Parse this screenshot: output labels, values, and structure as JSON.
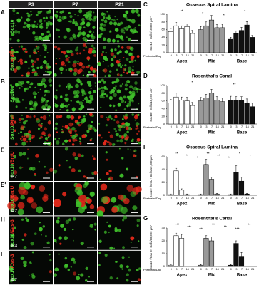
{
  "figure": {
    "columns": [
      "P3",
      "P7",
      "P21"
    ],
    "rows": [
      {
        "panel": "A",
        "stain": [
          "Sox10"
        ]
      },
      {
        "stain": [
          "Sox10",
          "/PI"
        ]
      },
      {
        "panel": "B",
        "stain": [
          "Sox10"
        ]
      },
      {
        "stain": [
          "Sox10",
          "/PI"
        ]
      },
      {
        "panel": "E",
        "stain": [
          "Sox10",
          "/BrdU"
        ],
        "age": "P7"
      },
      {
        "panel": "E'",
        "stain": [
          "Sox10",
          "/BrdU"
        ],
        "age": "P7"
      },
      {
        "panel": "H",
        "stain": [
          "Sox10",
          "/Cas-3"
        ],
        "age": "P3"
      },
      {
        "panel": "I",
        "stain": [
          "Sox10",
          "/Cas-3"
        ],
        "age": "P7"
      }
    ]
  },
  "chart_data": [
    {
      "type": "bar",
      "panel": "C",
      "title": "Osseous Spiral Lamina",
      "ylabel": "Sox10+ Cells/10,000 µm²",
      "xlabel": "Postnatal Day",
      "categories": [
        "0",
        "3",
        "7",
        "14",
        "21"
      ],
      "ylim": [
        0,
        100
      ],
      "yticks": [
        0,
        20,
        40,
        60,
        80,
        100
      ],
      "series": [
        {
          "name": "Apex",
          "color": "#ffffff",
          "values": [
            55,
            70,
            62,
            68,
            50
          ],
          "errors": [
            8,
            9,
            8,
            7,
            8
          ]
        },
        {
          "name": "Mid",
          "color": "#999999",
          "values": [
            60,
            70,
            85,
            65,
            65
          ],
          "errors": [
            8,
            10,
            12,
            8,
            9
          ]
        },
        {
          "name": "Base",
          "color": "#111111",
          "values": [
            35,
            50,
            58,
            72,
            40
          ],
          "errors": [
            5,
            7,
            8,
            9,
            5
          ]
        }
      ],
      "annotations": [
        "**",
        "*",
        "*",
        "*"
      ]
    },
    {
      "type": "bar",
      "panel": "D",
      "title": "Rosenthal's Canal",
      "ylabel": "Sox10+ Cells/10,000 µm²",
      "xlabel": "Postnatal Day",
      "categories": [
        "0",
        "3",
        "7",
        "14",
        "21"
      ],
      "ylim": [
        0,
        100
      ],
      "yticks": [
        0,
        20,
        40,
        60,
        80,
        100
      ],
      "series": [
        {
          "name": "Apex",
          "color": "#ffffff",
          "values": [
            55,
            70,
            62,
            60,
            48
          ],
          "errors": [
            9,
            10,
            8,
            9,
            8
          ]
        },
        {
          "name": "Mid",
          "color": "#999999",
          "values": [
            60,
            68,
            80,
            62,
            58
          ],
          "errors": [
            9,
            9,
            10,
            9,
            9
          ]
        },
        {
          "name": "Base",
          "color": "#111111",
          "values": [
            62,
            62,
            62,
            55,
            45
          ],
          "errors": [
            10,
            9,
            9,
            10,
            9
          ]
        }
      ],
      "annotations": [
        "*",
        "**"
      ]
    },
    {
      "type": "bar",
      "panel": "F",
      "title": "Osseous Spiral Lamina",
      "ylabel": "Sox10+/BrdU+ Cells/10,000 µm²",
      "xlabel": "Postnatal Day",
      "categories": [
        "0",
        "3",
        "7",
        "14",
        "21"
      ],
      "ylim": [
        0,
        60
      ],
      "yticks": [
        0,
        20,
        40,
        60
      ],
      "series": [
        {
          "name": "Apex",
          "color": "#ffffff",
          "values": [
            1,
            38,
            8,
            1,
            0
          ],
          "errors": [
            1,
            4,
            2,
            1,
            0
          ]
        },
        {
          "name": "Mid",
          "color": "#999999",
          "values": [
            1,
            48,
            25,
            2,
            0
          ],
          "errors": [
            1,
            8,
            3,
            1,
            0
          ]
        },
        {
          "name": "Base",
          "color": "#111111",
          "values": [
            1,
            36,
            22,
            2,
            0
          ],
          "errors": [
            1,
            10,
            6,
            1,
            0
          ]
        }
      ],
      "annotations": [
        "**",
        "**",
        "*",
        "**",
        "**",
        "**",
        "*",
        "*"
      ]
    },
    {
      "type": "bar",
      "panel": "G",
      "title": "Rosenthal's Canal",
      "ylabel": "Sox10+/Cas-3+ Cells/10,000 µm²",
      "xlabel": "Postnatal Day",
      "categories": [
        "0",
        "3",
        "7",
        "14",
        "21"
      ],
      "ylim": [
        0,
        30
      ],
      "yticks": [
        0,
        10,
        20,
        30
      ],
      "series": [
        {
          "name": "Apex",
          "color": "#ffffff",
          "values": [
            1,
            24,
            22,
            0,
            0
          ],
          "errors": [
            0.5,
            2,
            3,
            0,
            0
          ]
        },
        {
          "name": "Mid",
          "color": "#999999",
          "values": [
            1,
            22,
            20,
            0,
            0
          ],
          "errors": [
            0.5,
            2,
            3,
            0,
            0
          ]
        },
        {
          "name": "Base",
          "color": "#111111",
          "values": [
            1,
            18,
            8,
            0,
            0
          ],
          "errors": [
            0.5,
            2,
            3,
            0,
            0
          ]
        }
      ],
      "annotations": [
        "***",
        "***",
        "***",
        "**",
        "**",
        "***",
        "**"
      ]
    }
  ]
}
